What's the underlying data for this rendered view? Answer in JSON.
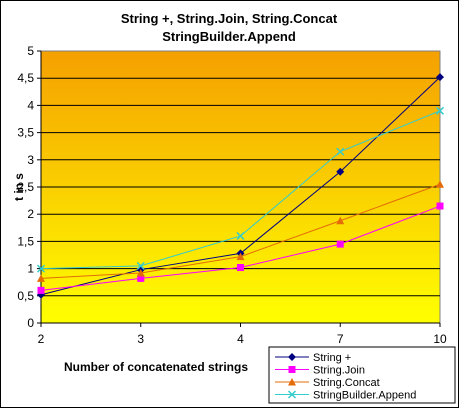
{
  "chart_data": {
    "type": "line",
    "title": "String +, String.Join, String.Concat",
    "subtitle": "StringBuilder.Append",
    "xlabel": "Number of concatenated strings",
    "ylabel": "t in s",
    "categories": [
      "2",
      "3",
      "4",
      "7",
      "10"
    ],
    "yticks": [
      "0",
      "0,5",
      "1",
      "1,5",
      "2",
      "2,5",
      "3",
      "3,5",
      "4",
      "4,5",
      "5"
    ],
    "ylim": [
      0,
      5
    ],
    "grid": true,
    "legend_position": "bottom-right",
    "background_gradient": {
      "top": "#F5A000",
      "bottom": "#FFFF00"
    },
    "series": [
      {
        "name": "String +",
        "color": "#000080",
        "marker": "diamond",
        "values": [
          0.52,
          0.98,
          1.28,
          2.78,
          4.52
        ]
      },
      {
        "name": "String.Join",
        "color": "#FF00FF",
        "marker": "square",
        "values": [
          0.6,
          0.82,
          1.02,
          1.45,
          2.15
        ]
      },
      {
        "name": "String.Concat",
        "color": "#E36C09",
        "marker": "triangle",
        "values": [
          0.82,
          0.92,
          1.22,
          1.88,
          2.55
        ]
      },
      {
        "name": "StringBuilder.Append",
        "color": "#33CCCC",
        "marker": "x",
        "values": [
          1.0,
          1.05,
          1.6,
          3.15,
          3.9
        ]
      }
    ]
  }
}
